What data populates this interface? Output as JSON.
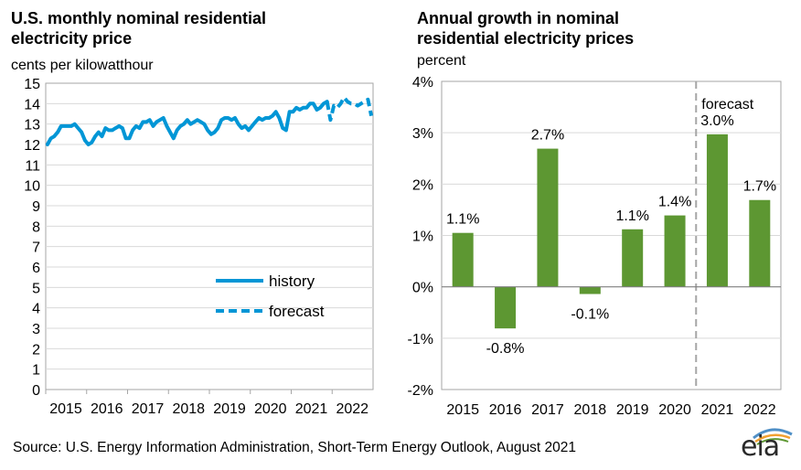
{
  "chart_data": [
    {
      "type": "line",
      "title": "U.S. monthly nominal residential\nelectricity price",
      "ylabel": "cents per kilowatthour",
      "ylim": [
        0,
        15
      ],
      "yticks": [
        0,
        1,
        2,
        3,
        4,
        5,
        6,
        7,
        8,
        9,
        10,
        11,
        12,
        13,
        14,
        15
      ],
      "xticks": [
        "2015",
        "2016",
        "2017",
        "2018",
        "2019",
        "2020",
        "2021",
        "2022"
      ],
      "legend_position": "bottom-right",
      "series": [
        {
          "name": "history",
          "style": "solid",
          "color": "#0096d6",
          "x": [
            "2015-01",
            "2015-02",
            "2015-03",
            "2015-04",
            "2015-05",
            "2015-06",
            "2015-07",
            "2015-08",
            "2015-09",
            "2015-10",
            "2015-11",
            "2015-12",
            "2016-01",
            "2016-02",
            "2016-03",
            "2016-04",
            "2016-05",
            "2016-06",
            "2016-07",
            "2016-08",
            "2016-09",
            "2016-10",
            "2016-11",
            "2016-12",
            "2017-01",
            "2017-02",
            "2017-03",
            "2017-04",
            "2017-05",
            "2017-06",
            "2017-07",
            "2017-08",
            "2017-09",
            "2017-10",
            "2017-11",
            "2017-12",
            "2018-01",
            "2018-02",
            "2018-03",
            "2018-04",
            "2018-05",
            "2018-06",
            "2018-07",
            "2018-08",
            "2018-09",
            "2018-10",
            "2018-11",
            "2018-12",
            "2019-01",
            "2019-02",
            "2019-03",
            "2019-04",
            "2019-05",
            "2019-06",
            "2019-07",
            "2019-08",
            "2019-09",
            "2019-10",
            "2019-11",
            "2019-12",
            "2020-01",
            "2020-02",
            "2020-03",
            "2020-04",
            "2020-05",
            "2020-06",
            "2020-07",
            "2020-08",
            "2020-09",
            "2020-10",
            "2020-11",
            "2020-12",
            "2021-01",
            "2021-02",
            "2021-03",
            "2021-04",
            "2021-05",
            "2021-06",
            "2021-07",
            "2021-08",
            "2021-09",
            "2021-10",
            "2021-11"
          ],
          "values": [
            12.0,
            12.3,
            12.4,
            12.6,
            12.9,
            12.9,
            12.9,
            12.9,
            13.0,
            12.8,
            12.6,
            12.2,
            12.0,
            12.1,
            12.4,
            12.6,
            12.4,
            12.8,
            12.7,
            12.7,
            12.8,
            12.9,
            12.8,
            12.3,
            12.3,
            12.7,
            12.9,
            12.8,
            13.1,
            13.1,
            13.2,
            12.9,
            13.1,
            13.2,
            13.3,
            12.9,
            12.6,
            12.3,
            12.7,
            12.9,
            13.0,
            13.2,
            13.0,
            13.1,
            13.2,
            13.1,
            13.0,
            12.7,
            12.5,
            12.6,
            12.8,
            13.2,
            13.3,
            13.3,
            13.2,
            13.3,
            13.0,
            12.8,
            12.9,
            12.7,
            12.9,
            13.1,
            13.3,
            13.2,
            13.3,
            13.3,
            13.4,
            13.6,
            13.3,
            12.8,
            12.7,
            13.6,
            13.6,
            13.8,
            13.7,
            13.8,
            13.8,
            14.0,
            14.0,
            13.7,
            13.8,
            14.0,
            14.1
          ]
        },
        {
          "name": "forecast",
          "style": "dashed",
          "color": "#0096d6",
          "x": [
            "2021-11",
            "2021-12",
            "2022-01",
            "2022-02",
            "2022-03",
            "2022-04",
            "2022-05",
            "2022-06",
            "2022-07",
            "2022-08",
            "2022-09",
            "2022-10",
            "2022-11",
            "2022-12"
          ],
          "values": [
            14.1,
            13.2,
            13.9,
            13.8,
            14.0,
            14.3,
            14.1,
            14.0,
            14.0,
            13.9,
            14.0,
            14.1,
            14.2,
            13.4
          ]
        }
      ]
    },
    {
      "type": "bar",
      "title": "Annual growth in nominal\nresidential electricity prices",
      "ylabel": "percent",
      "ylim": [
        -2,
        4
      ],
      "yticks": [
        "-2%",
        "-1%",
        "0%",
        "1%",
        "2%",
        "3%",
        "4%"
      ],
      "categories": [
        "2015",
        "2016",
        "2017",
        "2018",
        "2019",
        "2020",
        "2021",
        "2022"
      ],
      "values": [
        1.1,
        -0.8,
        2.7,
        -0.1,
        1.1,
        1.4,
        3.0,
        1.7
      ],
      "plotted_values": [
        1.05,
        -0.81,
        2.69,
        -0.14,
        1.12,
        1.39,
        2.97,
        1.69
      ],
      "data_labels": [
        "1.1%",
        "-0.8%",
        "2.7%",
        "-0.1%",
        "1.1%",
        "1.4%",
        "3.0%",
        "1.7%"
      ],
      "bar_color": "#5d9732",
      "forecast_divider_after": "2020",
      "annotation": "forecast"
    }
  ],
  "footer": {
    "source": "Source: U.S. Energy Information Administration, Short-Term Energy Outlook, August 2021",
    "logo_text": "eia"
  },
  "colors": {
    "line": "#0096d6",
    "bar": "#5d9732",
    "axis": "#a6a6a6",
    "grid": "#d9d9d9",
    "divider": "#a6a6a6"
  }
}
